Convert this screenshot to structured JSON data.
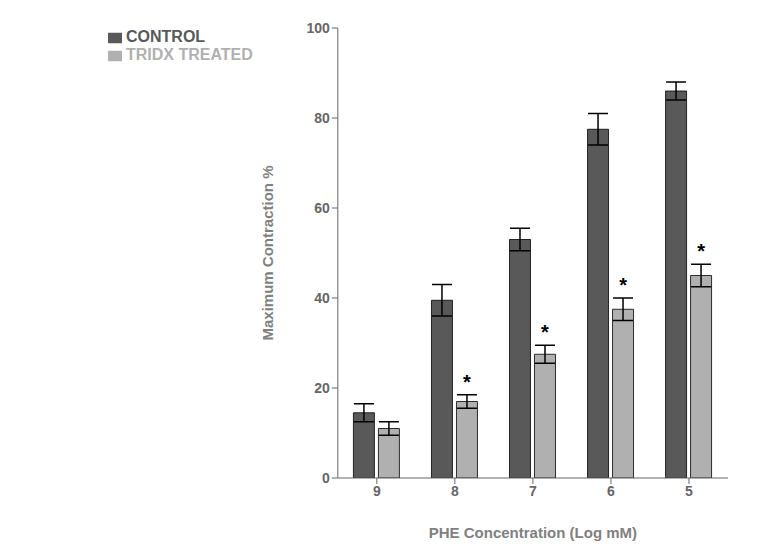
{
  "chart_data": {
    "type": "bar",
    "categories": [
      "9",
      "8",
      "7",
      "6",
      "5"
    ],
    "series": [
      {
        "name": "CONTROL",
        "color": "#595959",
        "values": [
          14.5,
          39.5,
          53.0,
          77.5,
          86.0
        ],
        "errors": [
          2.0,
          3.5,
          2.5,
          3.5,
          2.0
        ]
      },
      {
        "name": "TRIDX TREATED",
        "color": "#b0b0b0",
        "values": [
          11.0,
          17.0,
          27.5,
          37.5,
          45.0
        ],
        "errors": [
          1.5,
          1.5,
          2.0,
          2.5,
          2.5
        ]
      }
    ],
    "xlabel": "PHE Concentration  (Log mM)",
    "ylabel": "Maximum Contraction %",
    "ylim": [
      0,
      100
    ],
    "yticks": [
      0,
      20,
      40,
      60,
      80,
      100
    ],
    "legend": "upper left",
    "grid": false,
    "annotations": [
      {
        "text": "*",
        "category": "8",
        "series": "TRIDX TREATED"
      },
      {
        "text": "*",
        "category": "7",
        "series": "TRIDX TREATED"
      },
      {
        "text": "*",
        "category": "6",
        "series": "TRIDX TREATED"
      },
      {
        "text": "*",
        "category": "5",
        "series": "TRIDX TREATED"
      }
    ]
  }
}
